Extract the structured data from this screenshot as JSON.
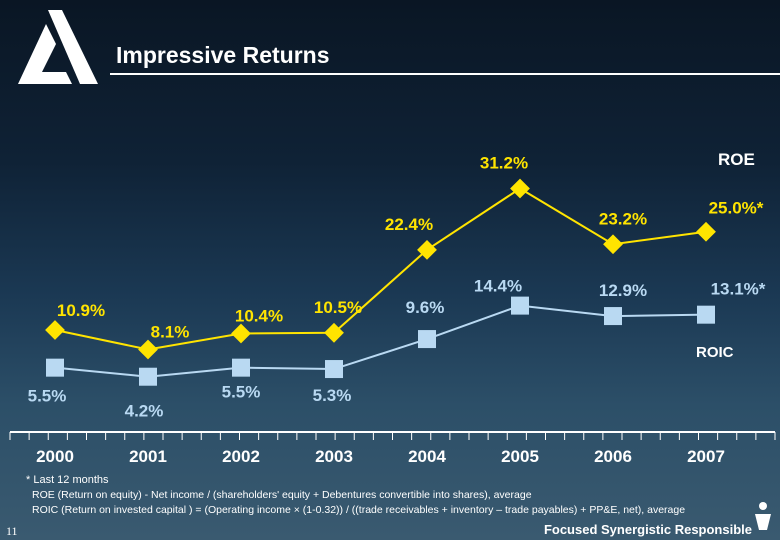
{
  "slide": {
    "title": "Impressive Returns",
    "page_number": "11",
    "tagline": "Focused  Synergistic Responsible",
    "footnotes": [
      "* Last 12 months",
      "ROE (Return on equity) -  Net income / (shareholders' equity + Debentures convertible into shares), average",
      "ROIC (Return on invested capital ) = (Operating income × (1-0.32)) / ((trade receivables + inventory – trade payables) + PP&E, net), average"
    ]
  },
  "colors": {
    "roe": "#ffe400",
    "roic": "#b9d9f2",
    "text": "#ffffff"
  },
  "chart_data": {
    "type": "line",
    "title": "Impressive Returns",
    "xlabel": "",
    "ylabel": "",
    "categories": [
      "2000",
      "2001",
      "2002",
      "2003",
      "2004",
      "2005",
      "2006",
      "2007"
    ],
    "ylim": [
      0,
      35
    ],
    "grid": false,
    "series": [
      {
        "name": "ROE",
        "values": [
          10.9,
          8.1,
          10.4,
          10.5,
          22.4,
          31.2,
          23.2,
          25.0
        ],
        "labels": [
          "10.9%",
          "8.1%",
          "10.4%",
          "10.5%",
          "22.4%",
          "31.2%",
          "23.2%",
          "25.0%*"
        ]
      },
      {
        "name": "ROIC",
        "values": [
          5.5,
          4.2,
          5.5,
          5.3,
          9.6,
          14.4,
          12.9,
          13.1
        ],
        "labels": [
          "5.5%",
          "4.2%",
          "5.5%",
          "5.3%",
          "9.6%",
          "14.4%",
          "12.9%",
          "13.1%*"
        ]
      }
    ]
  }
}
